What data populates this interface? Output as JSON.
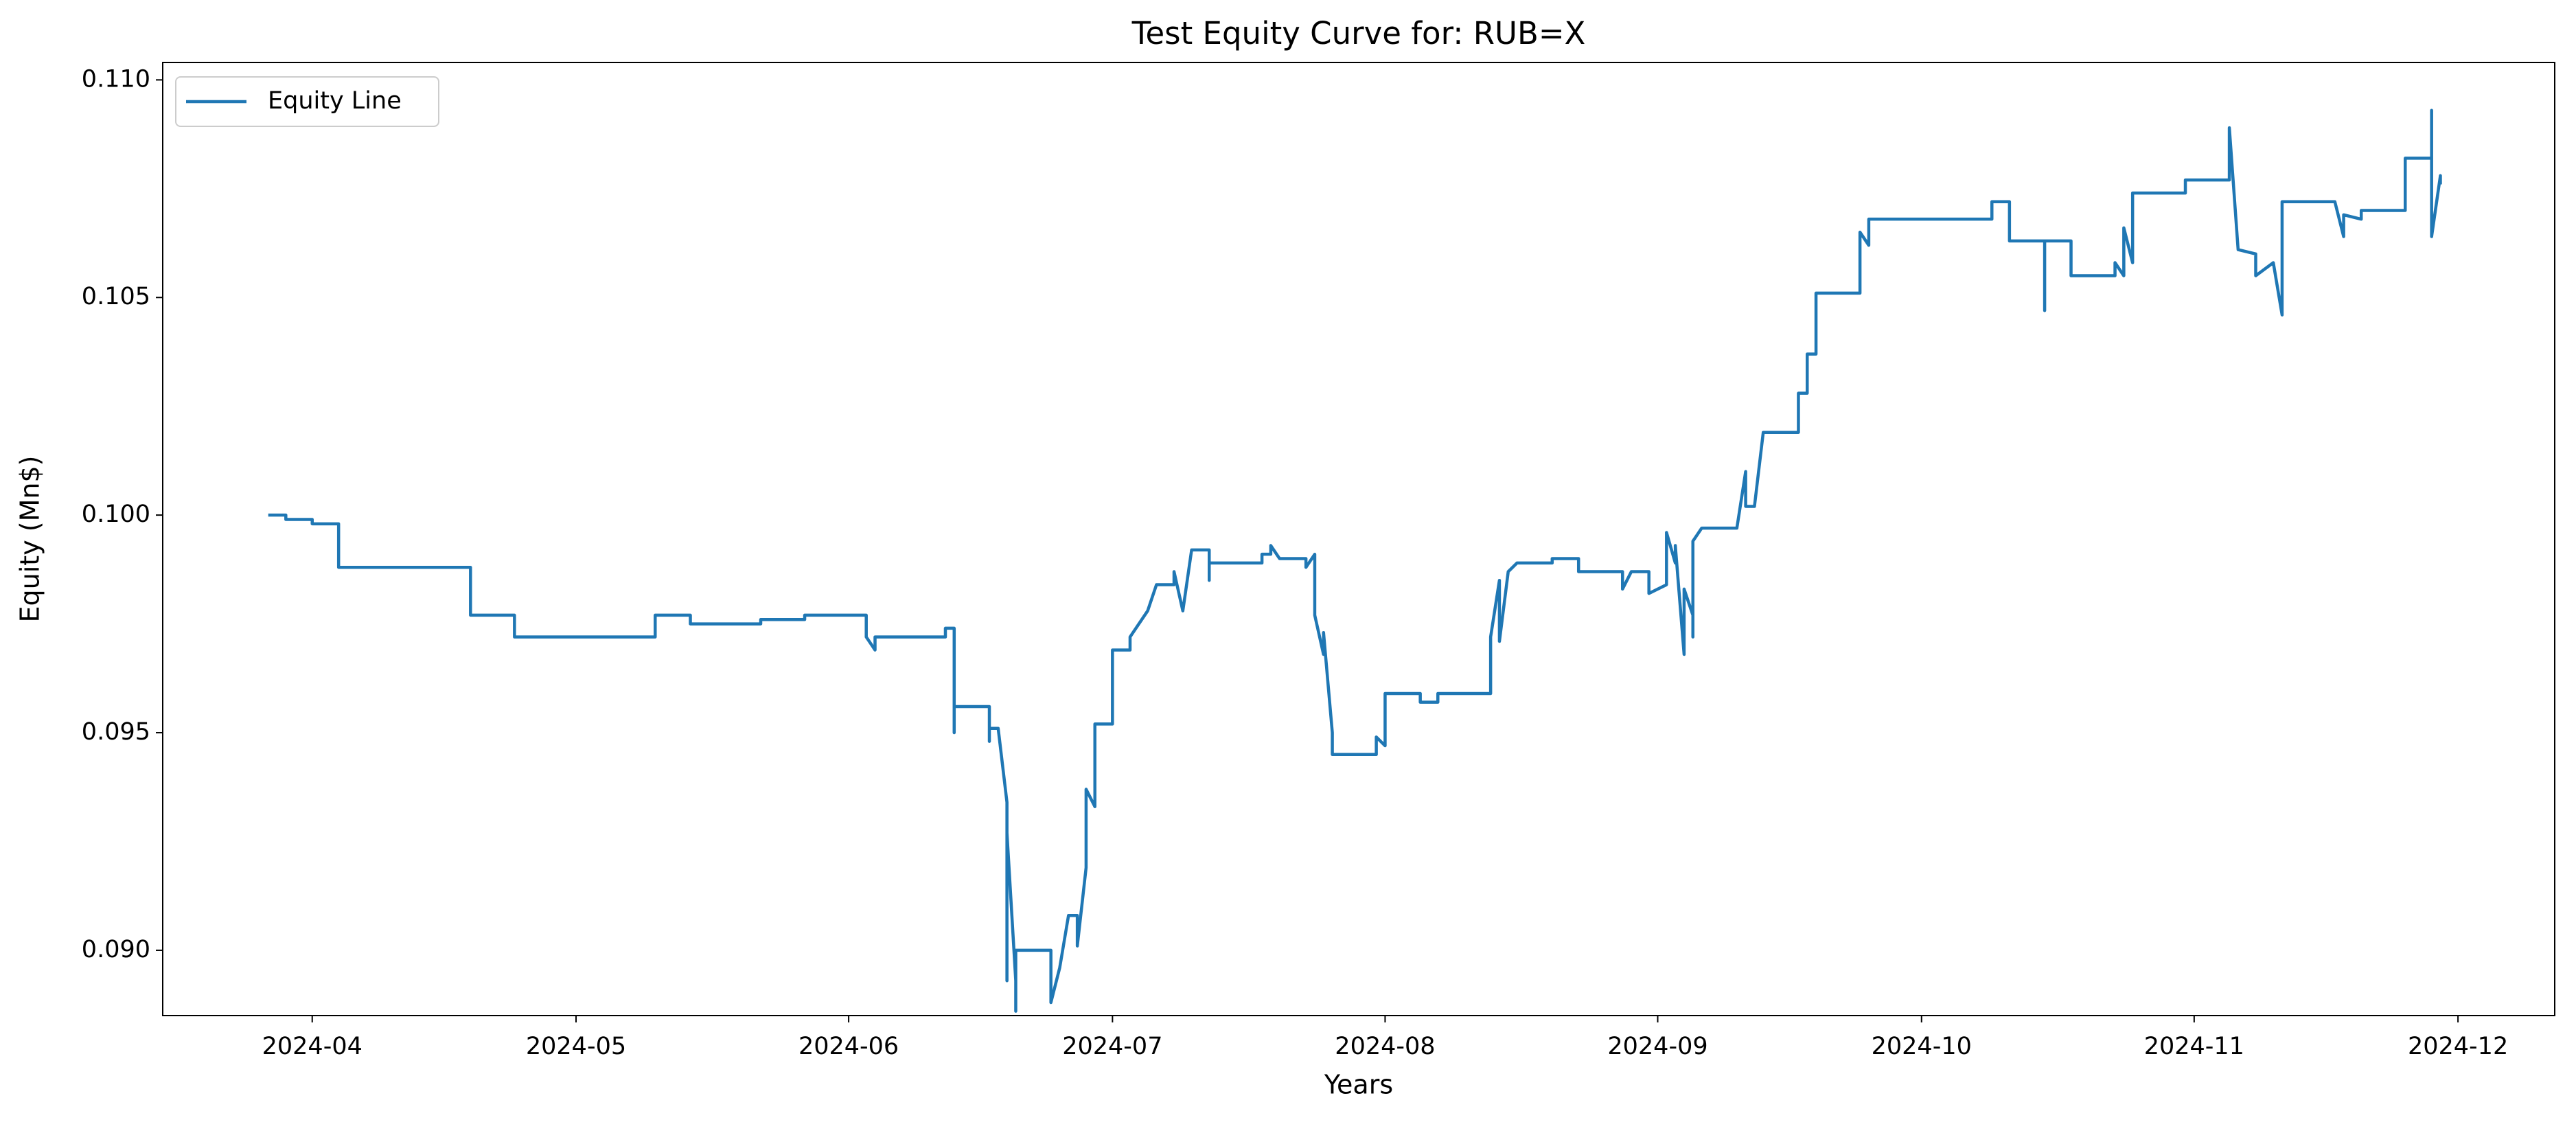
{
  "chart_data": {
    "type": "line",
    "title": "Test Equity Curve for: RUB=X",
    "x_label": "Years",
    "y_label": "Equity (Mn$)",
    "x": [
      "2024-03-27",
      "2024-03-29",
      "2024-03-29",
      "2024-04-01",
      "2024-04-01",
      "2024-04-04",
      "2024-04-04",
      "2024-04-19",
      "2024-04-19",
      "2024-04-24",
      "2024-04-24",
      "2024-05-10",
      "2024-05-10",
      "2024-05-14",
      "2024-05-14",
      "2024-05-22",
      "2024-05-22",
      "2024-05-27",
      "2024-05-27",
      "2024-06-03",
      "2024-06-03",
      "2024-06-04",
      "2024-06-04",
      "2024-06-12",
      "2024-06-12",
      "2024-06-13",
      "2024-06-13",
      "2024-06-13",
      "2024-06-13",
      "2024-06-17",
      "2024-06-17",
      "2024-06-17",
      "2024-06-18",
      "2024-06-19",
      "2024-06-19",
      "2024-06-19",
      "2024-06-19",
      "2024-06-20",
      "2024-06-20",
      "2024-06-20",
      "2024-06-24",
      "2024-06-24",
      "2024-06-25",
      "2024-06-26",
      "2024-06-27",
      "2024-06-27",
      "2024-06-28",
      "2024-06-28",
      "2024-06-29",
      "2024-06-29",
      "2024-07-01",
      "2024-07-01",
      "2024-07-03",
      "2024-07-03",
      "2024-07-05",
      "2024-07-06",
      "2024-07-08",
      "2024-07-08",
      "2024-07-09",
      "2024-07-10",
      "2024-07-12",
      "2024-07-12",
      "2024-07-12",
      "2024-07-18",
      "2024-07-18",
      "2024-07-19",
      "2024-07-19",
      "2024-07-20",
      "2024-07-23",
      "2024-07-23",
      "2024-07-24",
      "2024-07-24",
      "2024-07-25",
      "2024-07-25",
      "2024-07-26",
      "2024-07-26",
      "2024-07-31",
      "2024-07-31",
      "2024-08-01",
      "2024-08-01",
      "2024-08-05",
      "2024-08-05",
      "2024-08-07",
      "2024-08-07",
      "2024-08-13",
      "2024-08-13",
      "2024-08-14",
      "2024-08-14",
      "2024-08-15",
      "2024-08-16",
      "2024-08-20",
      "2024-08-20",
      "2024-08-23",
      "2024-08-23",
      "2024-08-28",
      "2024-08-28",
      "2024-08-29",
      "2024-08-31",
      "2024-08-31",
      "2024-09-02",
      "2024-09-02",
      "2024-09-03",
      "2024-09-03",
      "2024-09-04",
      "2024-09-04",
      "2024-09-05",
      "2024-09-05",
      "2024-09-05",
      "2024-09-06",
      "2024-09-10",
      "2024-09-11",
      "2024-09-11",
      "2024-09-12",
      "2024-09-13",
      "2024-09-17",
      "2024-09-17",
      "2024-09-18",
      "2024-09-18",
      "2024-09-19",
      "2024-09-19",
      "2024-09-24",
      "2024-09-24",
      "2024-09-25",
      "2024-09-25",
      "2024-10-09",
      "2024-10-09",
      "2024-10-11",
      "2024-10-11",
      "2024-10-15",
      "2024-10-15",
      "2024-10-15",
      "2024-10-18",
      "2024-10-18",
      "2024-10-23",
      "2024-10-23",
      "2024-10-24",
      "2024-10-24",
      "2024-10-25",
      "2024-10-25",
      "2024-10-31",
      "2024-10-31",
      "2024-11-05",
      "2024-11-05",
      "2024-11-06",
      "2024-11-08",
      "2024-11-08",
      "2024-11-10",
      "2024-11-11",
      "2024-11-11",
      "2024-11-17",
      "2024-11-18",
      "2024-11-18",
      "2024-11-20",
      "2024-11-20",
      "2024-11-25",
      "2024-11-25",
      "2024-11-28",
      "2024-11-28",
      "2024-11-28",
      "2024-11-29",
      "2024-11-29"
    ],
    "series": [
      {
        "name": "Equity Line",
        "color": "#1f77b4",
        "values": [
          0.1,
          0.1,
          0.0999,
          0.0999,
          0.0998,
          0.0998,
          0.0988,
          0.0988,
          0.0977,
          0.0977,
          0.0972,
          0.0972,
          0.0977,
          0.0977,
          0.0975,
          0.0975,
          0.0976,
          0.0976,
          0.0977,
          0.0977,
          0.0972,
          0.0969,
          0.0972,
          0.0972,
          0.0974,
          0.0974,
          0.095,
          0.0968,
          0.0956,
          0.0956,
          0.0948,
          0.0951,
          0.0951,
          0.0934,
          0.0918,
          0.0893,
          0.0927,
          0.0893,
          0.0886,
          0.09,
          0.09,
          0.0888,
          0.0896,
          0.0908,
          0.0908,
          0.0901,
          0.0919,
          0.0937,
          0.0933,
          0.0952,
          0.0952,
          0.0969,
          0.0969,
          0.0972,
          0.0978,
          0.0984,
          0.0984,
          0.0987,
          0.0978,
          0.0992,
          0.0992,
          0.0985,
          0.0989,
          0.0989,
          0.0991,
          0.0991,
          0.0993,
          0.099,
          0.099,
          0.0988,
          0.0991,
          0.0977,
          0.0968,
          0.0973,
          0.095,
          0.0945,
          0.0945,
          0.0949,
          0.0947,
          0.0959,
          0.0959,
          0.0957,
          0.0957,
          0.0959,
          0.0959,
          0.0972,
          0.0985,
          0.0971,
          0.0987,
          0.0989,
          0.0989,
          0.099,
          0.099,
          0.0987,
          0.0987,
          0.0983,
          0.0987,
          0.0987,
          0.0982,
          0.0984,
          0.0996,
          0.0989,
          0.0993,
          0.0968,
          0.0983,
          0.0977,
          0.0972,
          0.0994,
          0.0997,
          0.0997,
          0.101,
          0.1002,
          0.1002,
          0.1019,
          0.1019,
          0.1028,
          0.1028,
          0.1037,
          0.1037,
          0.1051,
          0.1051,
          0.1065,
          0.1062,
          0.1068,
          0.1068,
          0.1072,
          0.1072,
          0.1063,
          0.1063,
          0.1047,
          0.1063,
          0.1063,
          0.1055,
          0.1055,
          0.1058,
          0.1055,
          0.1066,
          0.1058,
          0.1074,
          0.1074,
          0.1077,
          0.1077,
          0.1089,
          0.1061,
          0.106,
          0.1055,
          0.1058,
          0.1046,
          0.1072,
          0.1072,
          0.1064,
          0.1069,
          0.1068,
          0.107,
          0.107,
          0.1082,
          0.1082,
          0.1093,
          0.1064,
          0.1078,
          0.1076
        ]
      }
    ],
    "xlim": [
      "2024-03-15",
      "2024-12-12"
    ],
    "xticks": [
      {
        "value": "2024-04-01",
        "label": "2024-04"
      },
      {
        "value": "2024-05-01",
        "label": "2024-05"
      },
      {
        "value": "2024-06-01",
        "label": "2024-06"
      },
      {
        "value": "2024-07-01",
        "label": "2024-07"
      },
      {
        "value": "2024-08-01",
        "label": "2024-08"
      },
      {
        "value": "2024-09-01",
        "label": "2024-09"
      },
      {
        "value": "2024-10-01",
        "label": "2024-10"
      },
      {
        "value": "2024-11-01",
        "label": "2024-11"
      },
      {
        "value": "2024-12-01",
        "label": "2024-12"
      }
    ],
    "ylim": [
      0.0885,
      0.1104
    ],
    "yticks": [
      {
        "value": 0.09,
        "label": "0.090"
      },
      0.095,
      {
        "value": 0.1,
        "label": "0.100"
      },
      0.105,
      {
        "value": 0.11,
        "label": "0.110"
      }
    ],
    "grid": false,
    "legend": "upper left"
  }
}
